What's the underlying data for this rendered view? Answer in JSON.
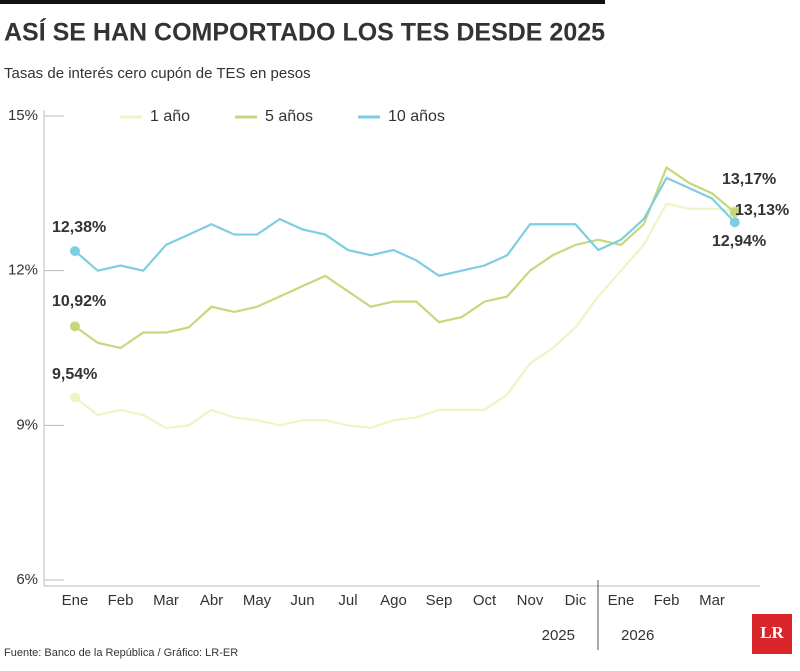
{
  "chart_data": {
    "type": "line",
    "title": "ASÍ SE HAN COMPORTADO LOS TES DESDE 2025",
    "subtitle": "Tasas de interés cero cupón de TES en pesos",
    "source": "Fuente: Banco de la República / Gráfico: LR-ER",
    "logo": "LR",
    "annotations": [
      "2025",
      "2026"
    ],
    "categories": [
      "Ene",
      null,
      "Feb",
      null,
      "Mar",
      null,
      "Abr",
      null,
      "May",
      null,
      "Jun",
      null,
      "Jul",
      null,
      "Ago",
      null,
      "Sep",
      null,
      "Oct",
      null,
      "Nov",
      null,
      "Dic",
      null,
      "Ene",
      null,
      "Feb",
      null,
      "Mar",
      null
    ],
    "ylim": [
      6,
      15
    ],
    "yticks": [
      {
        "value": 6,
        "label": "6%"
      },
      {
        "value": 9,
        "label": "9%"
      },
      {
        "value": 12,
        "label": "12%"
      },
      {
        "value": 15,
        "label": "15%"
      }
    ],
    "grid": false,
    "legend": "top",
    "series": [
      {
        "name": "1 año",
        "color": "#eef4c6",
        "values": [
          9.54,
          9.2,
          9.3,
          9.2,
          8.95,
          9.0,
          9.3,
          9.15,
          9.1,
          9.0,
          9.1,
          9.1,
          9.0,
          8.95,
          9.1,
          9.15,
          9.3,
          9.3,
          9.3,
          9.6,
          10.2,
          10.5,
          10.9,
          11.5,
          12.0,
          12.5,
          13.3,
          13.2,
          13.2,
          13.17
        ],
        "value_labels": [
          "9,54%",
          null,
          null,
          null,
          null,
          null,
          null,
          null,
          null,
          null,
          null,
          null,
          null,
          null,
          null,
          null,
          null,
          null,
          null,
          null,
          null,
          null,
          null,
          null,
          null,
          null,
          null,
          null,
          null,
          "13,17%"
        ]
      },
      {
        "name": "5 años",
        "color": "#c5d97c",
        "values": [
          10.92,
          10.6,
          10.5,
          10.8,
          10.8,
          10.9,
          11.3,
          11.2,
          11.3,
          11.5,
          11.7,
          11.9,
          11.6,
          11.3,
          11.4,
          11.4,
          11.0,
          11.1,
          11.4,
          11.5,
          12.0,
          12.3,
          12.5,
          12.6,
          12.5,
          12.9,
          14.0,
          13.7,
          13.5,
          13.13
        ],
        "value_labels": [
          "10,92%",
          null,
          null,
          null,
          null,
          null,
          null,
          null,
          null,
          null,
          null,
          null,
          null,
          null,
          null,
          null,
          null,
          null,
          null,
          null,
          null,
          null,
          null,
          null,
          null,
          null,
          null,
          null,
          null,
          "13,13%"
        ]
      },
      {
        "name": "10 años",
        "color": "#7fcde0",
        "values": [
          12.38,
          12.0,
          12.1,
          12.0,
          12.5,
          12.7,
          12.9,
          12.7,
          12.7,
          13.0,
          12.8,
          12.7,
          12.4,
          12.3,
          12.4,
          12.2,
          11.9,
          12.0,
          12.1,
          12.3,
          12.9,
          12.9,
          12.9,
          12.4,
          12.6,
          13.0,
          13.8,
          13.6,
          13.4,
          12.94
        ],
        "value_labels": [
          "12,38%",
          null,
          null,
          null,
          null,
          null,
          null,
          null,
          null,
          null,
          null,
          null,
          null,
          null,
          null,
          null,
          null,
          null,
          null,
          null,
          null,
          null,
          null,
          null,
          null,
          null,
          null,
          null,
          null,
          "12,94%"
        ]
      }
    ]
  }
}
